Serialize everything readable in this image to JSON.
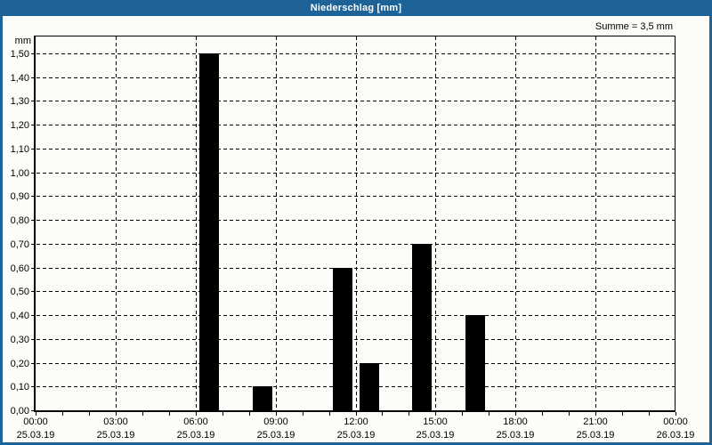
{
  "window": {
    "title": "Niederschlag [mm]",
    "colors": {
      "titlebar": "#1e6397",
      "border": "#1e6397",
      "background": "#fcfdf8",
      "foreground": "#000000"
    }
  },
  "summary_label": "Summe = 3,5 mm",
  "chart_data": {
    "type": "bar",
    "title": "Niederschlag [mm]",
    "unit_label": "mm",
    "ylabel": "mm",
    "xlabel": "",
    "ylim": [
      0,
      1.575
    ],
    "grid": "dashed",
    "legend_position": "none",
    "bar_color": "#000000",
    "sum_annotation": "Summe = 3,5 mm",
    "x_range_hours": [
      0,
      24
    ],
    "minor_x_tick_every_hours": 1,
    "y_ticks": [
      {
        "value": 0.0,
        "label": "0,00"
      },
      {
        "value": 0.1,
        "label": "0,10"
      },
      {
        "value": 0.2,
        "label": "0,20"
      },
      {
        "value": 0.3,
        "label": "0,30"
      },
      {
        "value": 0.4,
        "label": "0,40"
      },
      {
        "value": 0.5,
        "label": "0,50"
      },
      {
        "value": 0.6,
        "label": "0,60"
      },
      {
        "value": 0.7,
        "label": "0,70"
      },
      {
        "value": 0.8,
        "label": "0,80"
      },
      {
        "value": 0.9,
        "label": "0,90"
      },
      {
        "value": 1.0,
        "label": "1,00"
      },
      {
        "value": 1.1,
        "label": "1,10"
      },
      {
        "value": 1.2,
        "label": "1,20"
      },
      {
        "value": 1.3,
        "label": "1,30"
      },
      {
        "value": 1.4,
        "label": "1,40"
      },
      {
        "value": 1.5,
        "label": "1,50"
      }
    ],
    "x_ticks": [
      {
        "hour": 0,
        "time": "00:00",
        "date": "25.03.19"
      },
      {
        "hour": 3,
        "time": "03:00",
        "date": "25.03.19"
      },
      {
        "hour": 6,
        "time": "06:00",
        "date": "25.03.19"
      },
      {
        "hour": 9,
        "time": "09:00",
        "date": "25.03.19"
      },
      {
        "hour": 12,
        "time": "12:00",
        "date": "25.03.19"
      },
      {
        "hour": 15,
        "time": "15:00",
        "date": "25.03.19"
      },
      {
        "hour": 18,
        "time": "18:00",
        "date": "25.03.19"
      },
      {
        "hour": 21,
        "time": "21:00",
        "date": "25.03.19"
      },
      {
        "hour": 24,
        "time": "00:00",
        "date": "26.03.19"
      }
    ],
    "bars": [
      {
        "hour": 6,
        "value": 1.5,
        "label": "1,50"
      },
      {
        "hour": 8,
        "value": 0.1,
        "label": "0,10"
      },
      {
        "hour": 11,
        "value": 0.6,
        "label": "0,60"
      },
      {
        "hour": 12,
        "value": 0.2,
        "label": "0,20"
      },
      {
        "hour": 14,
        "value": 0.7,
        "label": "0,70"
      },
      {
        "hour": 16,
        "value": 0.4,
        "label": "0,40"
      }
    ]
  }
}
